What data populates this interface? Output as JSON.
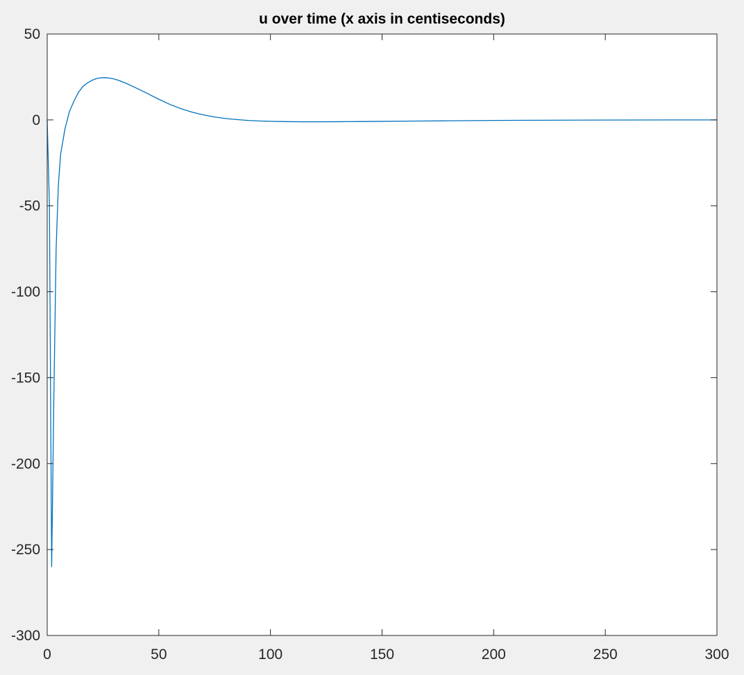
{
  "chart_data": {
    "type": "line",
    "title": "u over time (x axis in centiseconds)",
    "xlabel": "",
    "ylabel": "",
    "xlim": [
      0,
      300
    ],
    "ylim": [
      -300,
      50
    ],
    "xticks": [
      0,
      50,
      100,
      150,
      200,
      250,
      300
    ],
    "xtick_labels": [
      "0",
      "50",
      "100",
      "150",
      "200",
      "250",
      "300"
    ],
    "yticks": [
      -300,
      -250,
      -200,
      -150,
      -100,
      -50,
      0,
      50
    ],
    "ytick_labels": [
      "-300",
      "-250",
      "-200",
      "-150",
      "-100",
      "-50",
      "0",
      "50"
    ],
    "grid": false,
    "legend": false,
    "colors": {
      "line": "#0072bd",
      "axes": "#262626",
      "plot_bg": "#ffffff",
      "figure_bg": "#f0f0f0"
    },
    "series": [
      {
        "x": [
          0,
          1,
          2,
          3,
          4,
          5,
          6,
          8,
          10,
          12,
          14,
          16,
          18,
          20,
          22,
          24,
          26,
          28,
          30,
          32,
          35,
          40,
          45,
          50,
          55,
          60,
          65,
          70,
          75,
          80,
          85,
          90,
          95,
          100,
          105,
          110,
          115,
          120,
          130,
          140,
          150,
          160,
          170,
          180,
          190,
          200,
          220,
          240,
          260,
          280,
          300
        ],
        "y": [
          0,
          -50,
          -260,
          -160,
          -75,
          -38,
          -20,
          -5,
          5,
          11,
          16,
          19.5,
          21.5,
          23,
          24,
          24.5,
          24.6,
          24.3,
          23.8,
          23,
          21.5,
          18.5,
          15.3,
          12,
          9,
          6.5,
          4.5,
          2.9,
          1.7,
          0.8,
          0.2,
          -0.3,
          -0.6,
          -0.8,
          -0.95,
          -1.05,
          -1.1,
          -1.1,
          -1.05,
          -0.95,
          -0.85,
          -0.7,
          -0.6,
          -0.5,
          -0.4,
          -0.3,
          -0.2,
          -0.1,
          -0.05,
          0,
          0
        ]
      }
    ]
  }
}
